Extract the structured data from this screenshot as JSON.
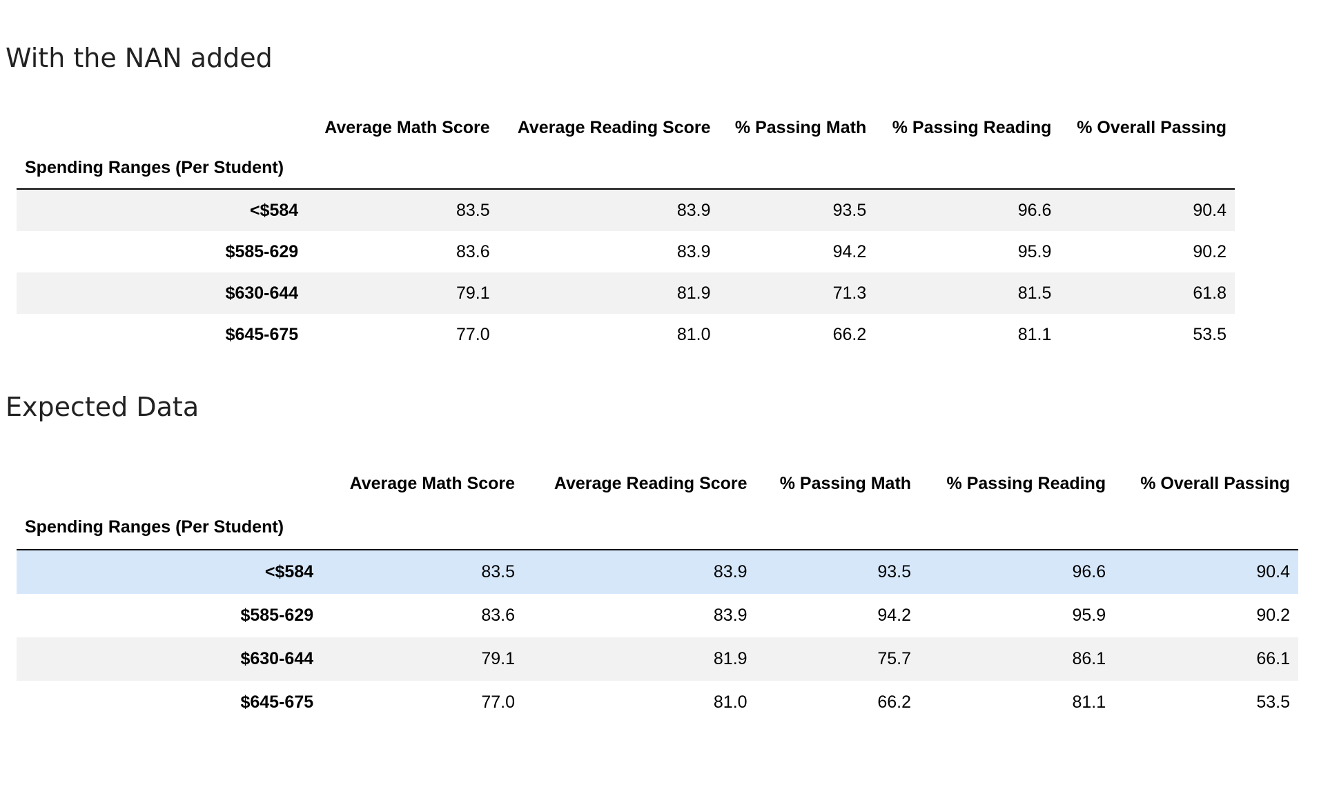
{
  "sections": [
    {
      "title": "With the NAN added",
      "index_name": "Spending Ranges (Per Student)",
      "columns": [
        "Average Math Score",
        "Average Reading Score",
        "% Passing Math",
        "% Passing Reading",
        "% Overall Passing"
      ],
      "rows": [
        {
          "label": "<$584",
          "values": [
            "83.5",
            "83.9",
            "93.5",
            "96.6",
            "90.4"
          ]
        },
        {
          "label": "$585-629",
          "values": [
            "83.6",
            "83.9",
            "94.2",
            "95.9",
            "90.2"
          ]
        },
        {
          "label": "$630-644",
          "values": [
            "79.1",
            "81.9",
            "71.3",
            "81.5",
            "61.8"
          ]
        },
        {
          "label": "$645-675",
          "values": [
            "77.0",
            "81.0",
            "66.2",
            "81.1",
            "53.5"
          ]
        }
      ]
    },
    {
      "title": "Expected Data",
      "index_name": "Spending Ranges (Per Student)",
      "columns": [
        "Average Math Score",
        "Average Reading Score",
        "% Passing Math",
        "% Passing Reading",
        "% Overall Passing"
      ],
      "rows": [
        {
          "label": "<$584",
          "values": [
            "83.5",
            "83.9",
            "93.5",
            "96.6",
            "90.4"
          ]
        },
        {
          "label": "$585-629",
          "values": [
            "83.6",
            "83.9",
            "94.2",
            "95.9",
            "90.2"
          ]
        },
        {
          "label": "$630-644",
          "values": [
            "79.1",
            "81.9",
            "75.7",
            "86.1",
            "66.1"
          ]
        },
        {
          "label": "$645-675",
          "values": [
            "77.0",
            "81.0",
            "66.2",
            "81.1",
            "53.5"
          ]
        }
      ]
    }
  ],
  "colors": {
    "row_stripe": "#f2f2f2",
    "row_hover_highlight": "#d6e7fa",
    "header_rule": "#000000"
  }
}
